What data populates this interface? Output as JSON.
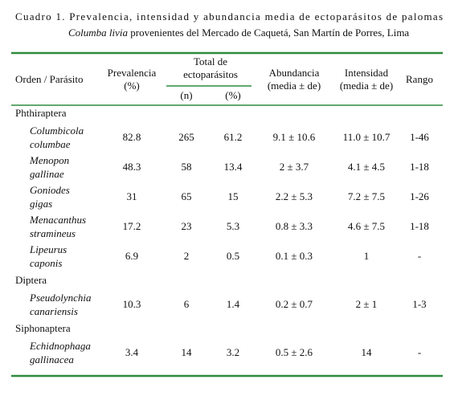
{
  "caption": {
    "line1": "Cuadro 1. Prevalencia, intensidad y abundancia media de ectoparásitos de palomas",
    "species": "Columba livia",
    "line2": "provenientes del Mercado de Caquetá, San Martín de Porres, Lima"
  },
  "table": {
    "headers": {
      "order": "Orden / Parásito",
      "prevalence": [
        "Prevalencia",
        "(%)"
      ],
      "total": [
        "Total de",
        "ectoparásitos"
      ],
      "n": "(n)",
      "pct": "(%)",
      "abundance": [
        "Abundancia",
        "(media ± de)"
      ],
      "intensity": [
        "Intensidad",
        "(media ± de)"
      ],
      "range": "Rango"
    },
    "groups": [
      {
        "order": "Phthiraptera",
        "rows": [
          {
            "parasite": [
              "Columbicola",
              "columbae"
            ],
            "cells": [
              "82.8",
              "265",
              "61.2",
              "9.1 ± 10.6",
              "11.0 ± 10.7",
              "1-46"
            ]
          },
          {
            "parasite": [
              "Menopon",
              "gallinae"
            ],
            "cells": [
              "48.3",
              "58",
              "13.4",
              "2 ± 3.7",
              "4.1 ± 4.5",
              "1-18"
            ]
          },
          {
            "parasite": [
              "Goniodes",
              "gigas"
            ],
            "cells": [
              "31",
              "65",
              "15",
              "2.2 ± 5.3",
              "7.2 ± 7.5",
              "1-26"
            ]
          },
          {
            "parasite": [
              "Menacanthus",
              "stramineus"
            ],
            "cells": [
              "17.2",
              "23",
              "5.3",
              "0.8 ± 3.3",
              "4.6 ± 7.5",
              "1-18"
            ]
          },
          {
            "parasite": [
              "Lipeurus",
              "caponis"
            ],
            "cells": [
              "6.9",
              "2",
              "0.5",
              "0.1 ± 0.3",
              "1",
              "-"
            ]
          }
        ]
      },
      {
        "order": "Diptera",
        "rows": [
          {
            "parasite": [
              "Pseudolynchia",
              "canariensis"
            ],
            "cells": [
              "10.3",
              "6",
              "1.4",
              "0.2 ± 0.7",
              "2 ± 1",
              "1-3"
            ]
          }
        ]
      },
      {
        "order": "Siphonaptera",
        "rows": [
          {
            "parasite": [
              "Echidnophaga",
              "gallinacea"
            ],
            "cells": [
              "3.4",
              "14",
              "3.2",
              "0.5 ± 2.6",
              "14",
              "-"
            ]
          }
        ]
      }
    ]
  }
}
